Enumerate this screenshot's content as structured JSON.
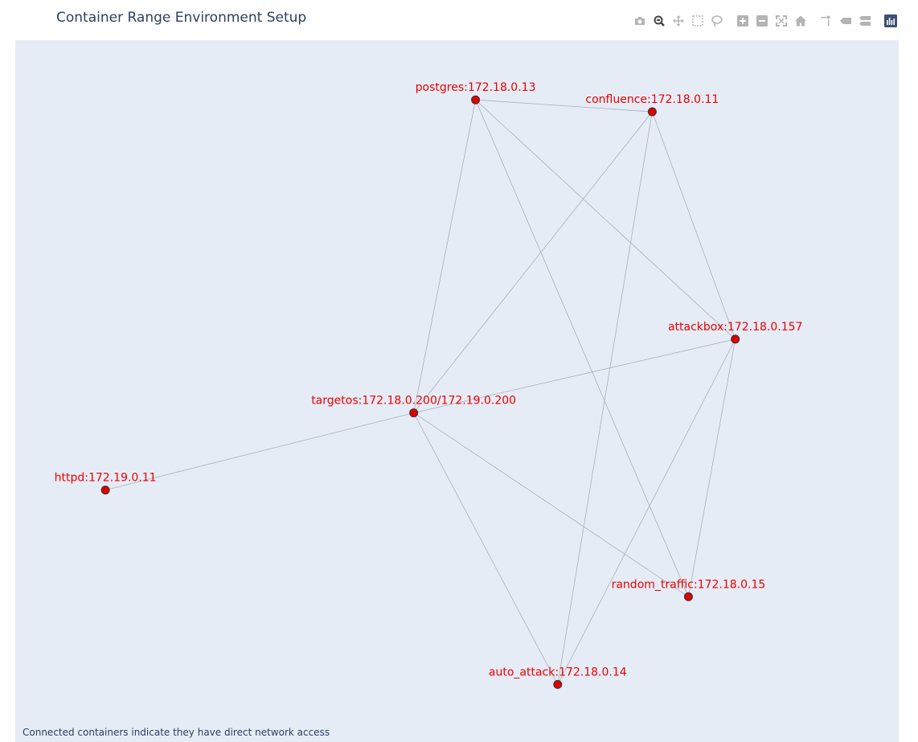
{
  "title": "Container Range Environment Setup",
  "annotation": "Connected containers indicate they have direct network access",
  "modebar": [
    {
      "name": "camera-icon",
      "label": "Download plot as a png"
    },
    {
      "name": "zoom-icon",
      "label": "Zoom",
      "active": true
    },
    {
      "name": "pan-icon",
      "label": "Pan"
    },
    {
      "name": "box-select-icon",
      "label": "Box Select"
    },
    {
      "name": "lasso-select-icon",
      "label": "Lasso Select"
    },
    {
      "name": "zoom-in-icon",
      "label": "Zoom in"
    },
    {
      "name": "zoom-out-icon",
      "label": "Zoom out"
    },
    {
      "name": "autoscale-icon",
      "label": "Autoscale"
    },
    {
      "name": "home-icon",
      "label": "Reset axes"
    },
    {
      "name": "spike-lines-icon",
      "label": "Toggle Spike Lines"
    },
    {
      "name": "hover-closest-icon",
      "label": "Show closest data on hover"
    },
    {
      "name": "hover-compare-icon",
      "label": "Compare data on hover"
    },
    {
      "name": "plotly-logo-icon",
      "label": "Produced with Plotly"
    }
  ],
  "colors": {
    "plot_bg": "#e5ecf6",
    "node_fill": "#dd0000",
    "node_stroke": "#333333",
    "label": "#ee0000",
    "edge": "#aab0bb",
    "title": "#2a3f5f",
    "modebar_icon": "#b4b4b4",
    "modebar_active": "#444444"
  },
  "chart_data": {
    "type": "network",
    "nodes": [
      {
        "id": "postgres",
        "label": "postgres:172.18.0.13",
        "x": 0.521,
        "y": 0.915
      },
      {
        "id": "confluence",
        "label": "confluence:172.18.0.11",
        "x": 0.721,
        "y": 0.898
      },
      {
        "id": "attackbox",
        "label": "attackbox:172.18.0.157",
        "x": 0.815,
        "y": 0.574
      },
      {
        "id": "targetos",
        "label": "targetos:172.18.0.200/172.19.0.200",
        "x": 0.451,
        "y": 0.469
      },
      {
        "id": "httpd",
        "label": "httpd:172.19.0.11",
        "x": 0.102,
        "y": 0.359
      },
      {
        "id": "random_traffic",
        "label": "random_traffic:172.18.0.15",
        "x": 0.762,
        "y": 0.207
      },
      {
        "id": "auto_attack",
        "label": "auto_attack:172.18.0.14",
        "x": 0.614,
        "y": 0.082
      }
    ],
    "edges": [
      [
        "postgres",
        "confluence"
      ],
      [
        "postgres",
        "targetos"
      ],
      [
        "postgres",
        "attackbox"
      ],
      [
        "postgres",
        "random_traffic"
      ],
      [
        "confluence",
        "targetos"
      ],
      [
        "confluence",
        "attackbox"
      ],
      [
        "confluence",
        "auto_attack"
      ],
      [
        "attackbox",
        "targetos"
      ],
      [
        "attackbox",
        "random_traffic"
      ],
      [
        "attackbox",
        "auto_attack"
      ],
      [
        "targetos",
        "httpd"
      ],
      [
        "targetos",
        "random_traffic"
      ],
      [
        "targetos",
        "auto_attack"
      ]
    ]
  }
}
